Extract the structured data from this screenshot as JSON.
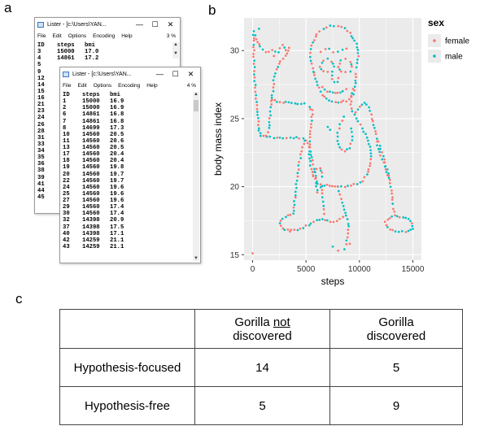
{
  "panels": {
    "a": "a",
    "b": "b",
    "c": "c"
  },
  "back_window": {
    "title": "Lister - [c:\\Users\\YAN...",
    "menus": [
      "File",
      "Edit",
      "Options",
      "Encoding",
      "Help"
    ],
    "percent": "3 %",
    "header": [
      "ID",
      "steps",
      "bmi"
    ],
    "rows": [
      [
        "3",
        "15000",
        "17.0"
      ],
      [
        "4",
        "14861",
        "17.2"
      ]
    ],
    "side_ids": [
      "5",
      "9",
      "12",
      "14",
      "15",
      "16",
      "21",
      "23",
      "24",
      "26",
      "28",
      "31",
      "33",
      "34",
      "35",
      "36",
      "38",
      "39",
      "41",
      "44",
      "45"
    ]
  },
  "front_window": {
    "title": "Lister - [c:\\Users\\YAN...",
    "menus": [
      "File",
      "Edit",
      "Options",
      "Encoding",
      "Help"
    ],
    "percent": "4 %",
    "header": [
      "ID",
      "steps",
      "bmi"
    ],
    "rows": [
      [
        "1",
        "15000",
        "16.9"
      ],
      [
        "2",
        "15000",
        "16.9"
      ],
      [
        "6",
        "14861",
        "16.8"
      ],
      [
        "7",
        "14861",
        "16.8"
      ],
      [
        "8",
        "14699",
        "17.3"
      ],
      [
        "10",
        "14560",
        "20.5"
      ],
      [
        "11",
        "14560",
        "20.6"
      ],
      [
        "13",
        "14560",
        "20.5"
      ],
      [
        "17",
        "14560",
        "20.4"
      ],
      [
        "18",
        "14560",
        "20.4"
      ],
      [
        "19",
        "14560",
        "19.8"
      ],
      [
        "20",
        "14560",
        "19.7"
      ],
      [
        "22",
        "14560",
        "19.7"
      ],
      [
        "24",
        "14560",
        "19.6"
      ],
      [
        "25",
        "14560",
        "19.6"
      ],
      [
        "27",
        "14560",
        "19.6"
      ],
      [
        "29",
        "14560",
        "17.4"
      ],
      [
        "30",
        "14560",
        "17.4"
      ],
      [
        "32",
        "14398",
        "20.9"
      ],
      [
        "37",
        "14398",
        "17.5"
      ],
      [
        "40",
        "14398",
        "17.1"
      ],
      [
        "42",
        "14259",
        "21.1"
      ],
      [
        "43",
        "14259",
        "21.1"
      ]
    ]
  },
  "colors": {
    "female": "#f8766d",
    "male": "#00bfc4",
    "panel_bg": "#ebebeb",
    "grid": "#ffffff"
  },
  "chart_data": {
    "type": "scatter",
    "title": "",
    "xlabel": "steps",
    "ylabel": "body mass index",
    "xlim": [
      -800,
      15800
    ],
    "ylim": [
      14.6,
      32.4
    ],
    "xticks": [
      0,
      5000,
      10000,
      15000
    ],
    "xtick_labels": [
      "0",
      "5000",
      "10000",
      "15000"
    ],
    "yticks": [
      15,
      20,
      25,
      30
    ],
    "ytick_labels": [
      "15",
      "20",
      "25",
      "30"
    ],
    "legend": {
      "title": "sex",
      "position": "top-right",
      "entries": [
        "female",
        "male"
      ]
    },
    "series": [
      {
        "name": "female",
        "color": "#f8766d"
      },
      {
        "name": "male",
        "color": "#00bfc4"
      }
    ],
    "shape_paths": [
      [
        [
          100,
          31.4
        ],
        [
          400,
          30.6
        ],
        [
          900,
          30.1
        ],
        [
          1300,
          29.9
        ],
        [
          1800,
          30.0
        ],
        [
          2400,
          29.9
        ],
        [
          2800,
          30.4
        ],
        [
          3100,
          30.0
        ],
        [
          3400,
          30.2
        ],
        [
          3100,
          29.6
        ],
        [
          2600,
          29.2
        ],
        [
          2200,
          28.6
        ],
        [
          2000,
          27.8
        ],
        [
          1900,
          27.0
        ],
        [
          1800,
          26.5
        ],
        [
          1700,
          25.8
        ],
        [
          1600,
          25.0
        ],
        [
          1500,
          24.3
        ],
        [
          1400,
          24.0
        ],
        [
          1300,
          23.7
        ],
        [
          800,
          23.7
        ],
        [
          600,
          24.1
        ],
        [
          500,
          25.0
        ],
        [
          400,
          26.0
        ],
        [
          300,
          27.0
        ],
        [
          200,
          28.0
        ],
        [
          150,
          29.0
        ],
        [
          100,
          30.0
        ],
        [
          100,
          31.4
        ]
      ],
      [
        [
          1300,
          23.7
        ],
        [
          2000,
          23.6
        ],
        [
          2800,
          23.6
        ],
        [
          3500,
          23.6
        ],
        [
          4100,
          23.6
        ],
        [
          4700,
          23.5
        ],
        [
          5200,
          23.2
        ],
        [
          5400,
          22.6
        ],
        [
          5600,
          21.9
        ],
        [
          5800,
          21.3
        ],
        [
          5900,
          20.6
        ],
        [
          6000,
          20.0
        ],
        [
          6100,
          19.3
        ]
      ],
      [
        [
          1800,
          26.4
        ],
        [
          2600,
          26.2
        ],
        [
          3400,
          26.2
        ],
        [
          4200,
          26.1
        ],
        [
          4900,
          26.1
        ],
        [
          5300,
          25.9
        ],
        [
          5600,
          25.5
        ]
      ],
      [
        [
          5700,
          28.4
        ],
        [
          5500,
          29.0
        ],
        [
          5400,
          29.8
        ],
        [
          5600,
          30.6
        ],
        [
          6000,
          31.2
        ],
        [
          6600,
          31.6
        ],
        [
          7300,
          31.8
        ],
        [
          8000,
          31.8
        ],
        [
          8700,
          31.6
        ],
        [
          9300,
          31.1
        ],
        [
          9700,
          30.5
        ],
        [
          9900,
          29.8
        ],
        [
          9800,
          29.1
        ],
        [
          9600,
          28.5
        ]
      ],
      [
        [
          5700,
          28.4
        ],
        [
          6100,
          27.5
        ],
        [
          6500,
          26.7
        ],
        [
          7200,
          26.3
        ],
        [
          8000,
          26.2
        ],
        [
          8800,
          26.3
        ],
        [
          9400,
          26.8
        ],
        [
          9700,
          27.6
        ],
        [
          9600,
          28.5
        ]
      ],
      [
        [
          5600,
          25.6
        ],
        [
          5500,
          24.6
        ],
        [
          5400,
          23.6
        ],
        [
          5300,
          22.6
        ],
        [
          5400,
          21.6
        ],
        [
          5700,
          20.8
        ],
        [
          6100,
          20.2
        ],
        [
          6500,
          20.0
        ],
        [
          7000,
          20.1
        ],
        [
          7500,
          20.0
        ],
        [
          8000,
          20.0
        ],
        [
          8600,
          20.0
        ],
        [
          9200,
          20.1
        ],
        [
          9800,
          20.2
        ],
        [
          10300,
          20.4
        ],
        [
          10700,
          20.9
        ],
        [
          11000,
          21.5
        ],
        [
          11100,
          22.2
        ],
        [
          11000,
          22.9
        ],
        [
          10700,
          23.6
        ],
        [
          10300,
          24.3
        ],
        [
          9900,
          24.8
        ],
        [
          9500,
          25.3
        ]
      ],
      [
        [
          9500,
          25.3
        ],
        [
          10000,
          25.9
        ],
        [
          10500,
          26.2
        ],
        [
          10900,
          25.8
        ],
        [
          11200,
          25.0
        ],
        [
          11500,
          24.1
        ],
        [
          11800,
          23.3
        ],
        [
          12100,
          22.5
        ],
        [
          12400,
          21.8
        ],
        [
          12700,
          21.0
        ],
        [
          12900,
          20.3
        ],
        [
          13000,
          19.7
        ],
        [
          13100,
          19.0
        ],
        [
          13200,
          18.4
        ],
        [
          13300,
          17.9
        ]
      ],
      [
        [
          13300,
          17.9
        ],
        [
          13800,
          17.8
        ],
        [
          14300,
          17.7
        ],
        [
          14800,
          17.5
        ],
        [
          15000,
          17.1
        ],
        [
          14800,
          16.8
        ],
        [
          14300,
          16.7
        ],
        [
          13700,
          16.7
        ],
        [
          13100,
          16.8
        ],
        [
          12600,
          17.0
        ],
        [
          12400,
          17.4
        ],
        [
          12800,
          17.7
        ],
        [
          13300,
          17.9
        ]
      ],
      [
        [
          12700,
          20.6
        ],
        [
          12400,
          21.5
        ],
        [
          12000,
          22.3
        ],
        [
          11700,
          23.0
        ],
        [
          11500,
          23.6
        ]
      ],
      [
        [
          4900,
          23.4
        ],
        [
          4600,
          22.6
        ],
        [
          4400,
          21.8
        ],
        [
          4200,
          21.0
        ],
        [
          4100,
          20.2
        ],
        [
          4000,
          19.4
        ],
        [
          3900,
          18.7
        ],
        [
          3800,
          18.0
        ]
      ],
      [
        [
          3800,
          18.0
        ],
        [
          3300,
          17.9
        ],
        [
          2800,
          17.6
        ],
        [
          2500,
          17.3
        ],
        [
          2800,
          16.9
        ],
        [
          3300,
          16.8
        ],
        [
          3900,
          16.8
        ],
        [
          4500,
          16.9
        ],
        [
          5000,
          17.1
        ],
        [
          5500,
          17.3
        ],
        [
          6000,
          17.5
        ],
        [
          6500,
          17.6
        ],
        [
          7000,
          17.5
        ],
        [
          7600,
          17.4
        ],
        [
          8200,
          17.6
        ],
        [
          8700,
          17.9
        ]
      ],
      [
        [
          5700,
          20.8
        ],
        [
          6000,
          21.3
        ],
        [
          6300,
          21.4
        ],
        [
          6500,
          21.0
        ],
        [
          6500,
          20.5
        ]
      ],
      [
        [
          6400,
          20.2
        ],
        [
          6500,
          19.5
        ],
        [
          6600,
          18.9
        ],
        [
          6700,
          18.3
        ],
        [
          6800,
          17.7
        ]
      ],
      [
        [
          8000,
          20.0
        ],
        [
          8200,
          19.4
        ],
        [
          8400,
          18.8
        ],
        [
          8600,
          18.3
        ],
        [
          8800,
          17.9
        ],
        [
          9000,
          17.3
        ],
        [
          8900,
          16.6
        ],
        [
          8800,
          16.0
        ],
        [
          8700,
          15.6
        ]
      ],
      [
        [
          6300,
          28.8
        ],
        [
          6600,
          29.3
        ],
        [
          7000,
          29.4
        ],
        [
          7400,
          29.2
        ],
        [
          7600,
          28.8
        ],
        [
          7400,
          28.5
        ],
        [
          7000,
          28.4
        ],
        [
          6600,
          28.5
        ],
        [
          6300,
          28.8
        ]
      ],
      [
        [
          8000,
          28.8
        ],
        [
          8300,
          29.3
        ],
        [
          8700,
          29.4
        ],
        [
          9100,
          29.2
        ],
        [
          9300,
          28.8
        ],
        [
          9100,
          28.5
        ],
        [
          8700,
          28.4
        ],
        [
          8300,
          28.5
        ],
        [
          8000,
          28.8
        ]
      ],
      [
        [
          6400,
          29.9
        ],
        [
          6800,
          30.1
        ],
        [
          7200,
          30.1
        ],
        [
          7600,
          29.9
        ],
        [
          8000,
          29.9
        ],
        [
          8400,
          30.1
        ],
        [
          8800,
          30.1
        ],
        [
          9200,
          29.9
        ]
      ],
      [
        [
          7400,
          28.2
        ],
        [
          7600,
          27.7
        ],
        [
          7900,
          27.7
        ],
        [
          8100,
          28.2
        ]
      ],
      [
        [
          6500,
          27.3
        ],
        [
          7000,
          27.0
        ],
        [
          7500,
          26.9
        ],
        [
          8000,
          26.9
        ],
        [
          8500,
          27.0
        ],
        [
          9000,
          27.3
        ]
      ],
      [
        [
          8500,
          25.1
        ],
        [
          8200,
          24.6
        ],
        [
          8000,
          24.0
        ],
        [
          7900,
          23.4
        ],
        [
          8100,
          22.9
        ],
        [
          8600,
          22.6
        ],
        [
          9100,
          22.8
        ],
        [
          9300,
          23.4
        ],
        [
          9300,
          24.0
        ],
        [
          9200,
          24.6
        ]
      ],
      [
        [
          7000,
          24.4
        ],
        [
          7300,
          24.2
        ],
        [
          7600,
          24.0
        ]
      ],
      [
        [
          9400,
          27.2
        ],
        [
          9300,
          26.6
        ],
        [
          9200,
          26.0
        ],
        [
          9300,
          25.3
        ]
      ]
    ],
    "isolated_points": [
      [
        0,
        15.1,
        "female"
      ],
      [
        7500,
        15.6,
        "male"
      ],
      [
        8000,
        15.3,
        "female"
      ],
      [
        8600,
        15.4,
        "male"
      ],
      [
        9100,
        15.8,
        "female"
      ],
      [
        15000,
        16.9,
        "male"
      ],
      [
        3500,
        16.7,
        "female"
      ],
      [
        2000,
        29.6,
        "female"
      ],
      [
        600,
        31.6,
        "male"
      ]
    ]
  },
  "table": {
    "col_headers": [
      [
        "Gorilla ",
        "not",
        "discovered"
      ],
      [
        "Gorilla",
        "discovered"
      ]
    ],
    "rows": [
      {
        "label": "Hypothesis-focused",
        "values": [
          "14",
          "5"
        ]
      },
      {
        "label": "Hypothesis-free",
        "values": [
          "5",
          "9"
        ]
      }
    ]
  }
}
